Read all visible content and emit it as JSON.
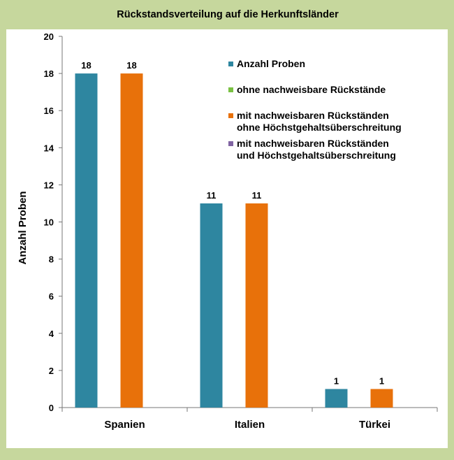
{
  "chart_data": {
    "type": "bar",
    "title": "Rückstandsverteilung  auf die Herkunftsländer",
    "ylabel": "Anzahl Proben",
    "xlabel": "",
    "ylim": [
      0,
      20
    ],
    "yticks": [
      0,
      2,
      4,
      6,
      8,
      10,
      12,
      14,
      16,
      18,
      20
    ],
    "categories": [
      "Spanien",
      "Italien",
      "Türkei"
    ],
    "series": [
      {
        "name": "Anzahl Proben",
        "color": "#2e86a0",
        "values": [
          18,
          11,
          1
        ]
      },
      {
        "name": "ohne nachweisbare Rückstände",
        "color": "#7ac143",
        "values": [
          0,
          0,
          0
        ]
      },
      {
        "name": [
          "mit nachweisbaren Rückständen",
          "ohne Höchstgehaltsüberschreitung"
        ],
        "color": "#e8710a",
        "values": [
          18,
          11,
          1
        ]
      },
      {
        "name": [
          "mit nachweisbaren Rückständen",
          "und  Höchstgehaltsüberschreitung"
        ],
        "color": "#8064a2",
        "values": [
          0,
          0,
          0
        ]
      }
    ],
    "data_labels": [
      {
        "series": 0,
        "values": [
          18,
          11,
          1
        ]
      },
      {
        "series": 2,
        "values": [
          18,
          11,
          1
        ]
      }
    ],
    "grid": false,
    "legend_position": "top-right",
    "colors": {
      "background": "#c6d79d",
      "plot_area": "#ffffff"
    }
  }
}
